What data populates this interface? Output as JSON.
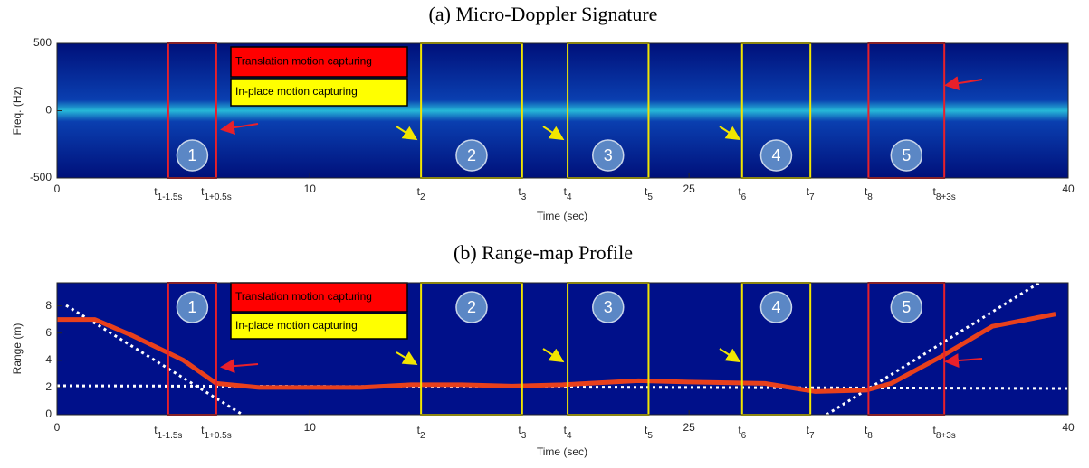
{
  "chart_data": [
    {
      "type": "spectrogram",
      "title": "(a) Micro-Doppler Signature",
      "xlabel": "Time (sec)",
      "ylabel": "Freq. (Hz)",
      "xlim": [
        0,
        40
      ],
      "ylim": [
        -500,
        500
      ],
      "yticks": [
        -500,
        0,
        500
      ],
      "xticks": [
        0,
        {
          "value": 4.4,
          "label": "t",
          "sub": "1-1.5s"
        },
        {
          "value": 6.3,
          "label": "t",
          "sub": "1+0.5s"
        },
        10,
        {
          "value": 14.4,
          "label": "t",
          "sub": "2"
        },
        {
          "value": 18.4,
          "label": "t",
          "sub": "3"
        },
        {
          "value": 20.2,
          "label": "t",
          "sub": "4"
        },
        {
          "value": 23.4,
          "label": "t",
          "sub": "5"
        },
        25,
        {
          "value": 27.1,
          "label": "t",
          "sub": "6"
        },
        {
          "value": 29.8,
          "label": "t",
          "sub": "7"
        },
        {
          "value": 32.1,
          "label": "t",
          "sub": "8"
        },
        {
          "value": 35.1,
          "label": "t",
          "sub": "8+3s"
        },
        40
      ],
      "regions": [
        {
          "start": 4.4,
          "end": 6.3,
          "label": "1",
          "color": "#e8202a"
        },
        {
          "start": 14.4,
          "end": 18.4,
          "label": "2",
          "color": "#f2e600"
        },
        {
          "start": 20.2,
          "end": 23.4,
          "label": "3",
          "color": "#f2e600"
        },
        {
          "start": 27.1,
          "end": 29.8,
          "label": "4",
          "color": "#f2e600"
        },
        {
          "start": 32.1,
          "end": 35.1,
          "label": "5",
          "color": "#e8202a"
        }
      ],
      "legend": [
        {
          "name": "Translation motion capturing",
          "color": "#ff0000"
        },
        {
          "name": "In-place motion capturing",
          "color": "#ffff00"
        }
      ]
    },
    {
      "type": "range",
      "title": "(b) Range-map Profile",
      "xlabel": "Time (sec)",
      "ylabel": "Range (m)",
      "xlim": [
        0,
        40
      ],
      "ylim": [
        0,
        9.7
      ],
      "yticks": [
        0,
        2,
        4,
        6,
        8
      ],
      "xticks": [
        0,
        {
          "value": 4.4,
          "label": "t",
          "sub": "1-1.5s"
        },
        {
          "value": 6.3,
          "label": "t",
          "sub": "1+0.5s"
        },
        10,
        {
          "value": 14.4,
          "label": "t",
          "sub": "2"
        },
        {
          "value": 18.4,
          "label": "t",
          "sub": "3"
        },
        {
          "value": 20.2,
          "label": "t",
          "sub": "4"
        },
        {
          "value": 23.4,
          "label": "t",
          "sub": "5"
        },
        25,
        {
          "value": 27.1,
          "label": "t",
          "sub": "6"
        },
        {
          "value": 29.8,
          "label": "t",
          "sub": "7"
        },
        {
          "value": 32.1,
          "label": "t",
          "sub": "8"
        },
        {
          "value": 35.1,
          "label": "t",
          "sub": "8+3s"
        },
        40
      ],
      "x": [
        0,
        1.5,
        3,
        5,
        6.3,
        8,
        12,
        14,
        16,
        18,
        20,
        23,
        25,
        28,
        30,
        32,
        33,
        35,
        37,
        39.5
      ],
      "values": [
        7,
        7,
        5.8,
        4,
        2.3,
        2,
        2,
        2.2,
        2.2,
        2.1,
        2.2,
        2.5,
        2.4,
        2.3,
        1.7,
        1.8,
        2.3,
        4.3,
        6.5,
        7.4
      ],
      "color": "#e8401c",
      "regions": [
        {
          "start": 4.4,
          "end": 6.3,
          "label": "1",
          "color": "#e8202a"
        },
        {
          "start": 14.4,
          "end": 18.4,
          "label": "2",
          "color": "#f2e600"
        },
        {
          "start": 20.2,
          "end": 23.4,
          "label": "3",
          "color": "#f2e600"
        },
        {
          "start": 27.1,
          "end": 29.8,
          "label": "4",
          "color": "#f2e600"
        },
        {
          "start": 32.1,
          "end": 35.1,
          "label": "5",
          "color": "#e8202a"
        }
      ],
      "legend": [
        {
          "name": "Translation motion capturing",
          "color": "#ff0000"
        },
        {
          "name": "In-place motion capturing",
          "color": "#ffff00"
        }
      ]
    }
  ]
}
